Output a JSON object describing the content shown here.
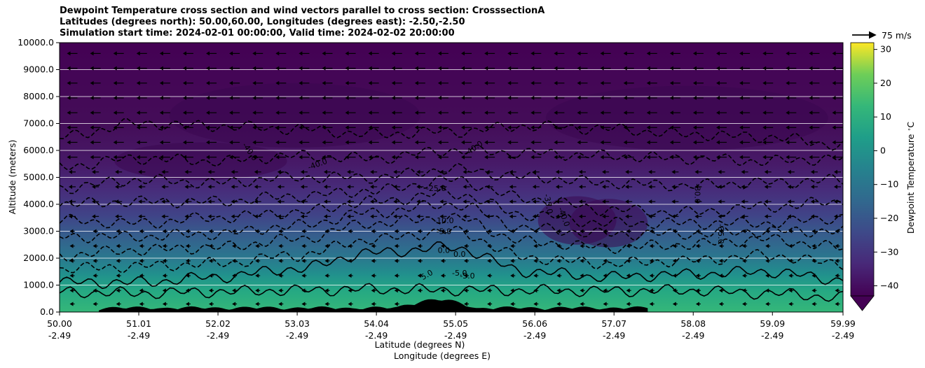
{
  "titles": {
    "line1": "Dewpoint Temperature cross section and wind vectors parallel to cross section: CrosssectionA",
    "line2": "Latitudes (degrees north): 50.00,60.00, Longitudes (degrees east): -2.50,-2.50",
    "line3": "Simulation start time: 2024-02-01 00:00:00, Valid time: 2024-02-02 20:00:00"
  },
  "quiver_key": {
    "label": "75 m/s"
  },
  "chart_data": {
    "type": "heatmap",
    "xlabel": "Latitude (degrees N)",
    "xlabel2": "Longitude (degrees E)",
    "ylabel": "Altitude (meters)",
    "xlim": [
      50.0,
      59.99
    ],
    "ylim": [
      0,
      10000
    ],
    "x_ticks": [
      {
        "lat": "50.00",
        "lon": "-2.49",
        "value": 50.0
      },
      {
        "lat": "51.01",
        "lon": "-2.49",
        "value": 51.01
      },
      {
        "lat": "52.02",
        "lon": "-2.49",
        "value": 52.02
      },
      {
        "lat": "53.03",
        "lon": "-2.49",
        "value": 53.03
      },
      {
        "lat": "54.04",
        "lon": "-2.49",
        "value": 54.04
      },
      {
        "lat": "55.05",
        "lon": "-2.49",
        "value": 55.05
      },
      {
        "lat": "56.06",
        "lon": "-2.49",
        "value": 56.06
      },
      {
        "lat": "57.07",
        "lon": "-2.49",
        "value": 57.07
      },
      {
        "lat": "58.08",
        "lon": "-2.49",
        "value": 58.08
      },
      {
        "lat": "59.09",
        "lon": "-2.49",
        "value": 59.09
      },
      {
        "lat": "59.99",
        "lon": "-2.49",
        "value": 59.99
      }
    ],
    "y_ticks": [
      "0.0",
      "1000.0",
      "2000.0",
      "3000.0",
      "4000.0",
      "5000.0",
      "6000.0",
      "7000.0",
      "8000.0",
      "9000.0",
      "10000.0"
    ],
    "grid": "horizontal",
    "colorbar": {
      "label": "Dewpoint Temperature $^\\circ$C",
      "ticks": [
        "−40",
        "−30",
        "−20",
        "−10",
        "0",
        "10",
        "20",
        "30"
      ],
      "range": [
        -43,
        32
      ],
      "extend": "min",
      "colormap": "viridis"
    },
    "series": [
      {
        "level": 5,
        "heights": [
          750,
          700,
          750,
          800,
          850,
          820,
          800,
          780,
          800,
          700,
          550
        ],
        "style": "solid"
      },
      {
        "level": 0,
        "heights": [
          1100,
          1100,
          1300,
          1600,
          2200,
          2400,
          1500,
          1300,
          1400,
          1500,
          1200
        ],
        "style": "solid"
      },
      {
        "level": -5,
        "heights": [
          1600,
          1700,
          1800,
          2100,
          2700,
          3000,
          2000,
          1800,
          1900,
          2100,
          1800
        ],
        "style": "dashed"
      },
      {
        "level": -10,
        "heights": [
          2100,
          2300,
          2400,
          2700,
          3300,
          3500,
          2600,
          2400,
          2500,
          2700,
          2400
        ],
        "style": "dashed"
      },
      {
        "level": -15,
        "heights": [
          2800,
          2800,
          2900,
          3200,
          3700,
          4000,
          3100,
          2900,
          2900,
          3000,
          3000
        ],
        "style": "dashed"
      },
      {
        "level": -20,
        "heights": [
          3400,
          3300,
          3500,
          3700,
          4100,
          4400,
          3600,
          3300,
          3300,
          3300,
          3500
        ],
        "style": "dashed"
      },
      {
        "level": -25,
        "heights": [
          4000,
          4100,
          4100,
          4300,
          4500,
          4900,
          4200,
          3800,
          3700,
          3900,
          4100
        ],
        "style": "dashed"
      },
      {
        "level": -30,
        "heights": [
          4600,
          4900,
          4800,
          5000,
          5000,
          5300,
          5000,
          4800,
          4700,
          4800,
          4900
        ],
        "style": "dashed"
      },
      {
        "level": -35,
        "heights": [
          5400,
          5700,
          5600,
          5800,
          5700,
          6000,
          5900,
          5800,
          5700,
          5600,
          5700
        ],
        "style": "dashed"
      },
      {
        "level": -40,
        "heights": [
          6500,
          7000,
          6900,
          6800,
          6600,
          6700,
          6900,
          6800,
          6600,
          6500,
          6200
        ],
        "style": "dashed"
      }
    ],
    "contour_labels": [
      "-40.0",
      "-40.0",
      "-40.0",
      "-25.0",
      "-10.0",
      "-5.0",
      "0.0",
      "0.0",
      "-5.0",
      "-5.0",
      "5.0",
      "-35.0",
      "-40.0",
      "-30.0",
      "-35.0"
    ],
    "wind": {
      "direction": "toward decreasing latitude",
      "aloft_strength": "strong",
      "surface_strength": "weak"
    },
    "terrain": {
      "lat_range": [
        50.5,
        57.5
      ],
      "max_height_m": 600
    }
  }
}
